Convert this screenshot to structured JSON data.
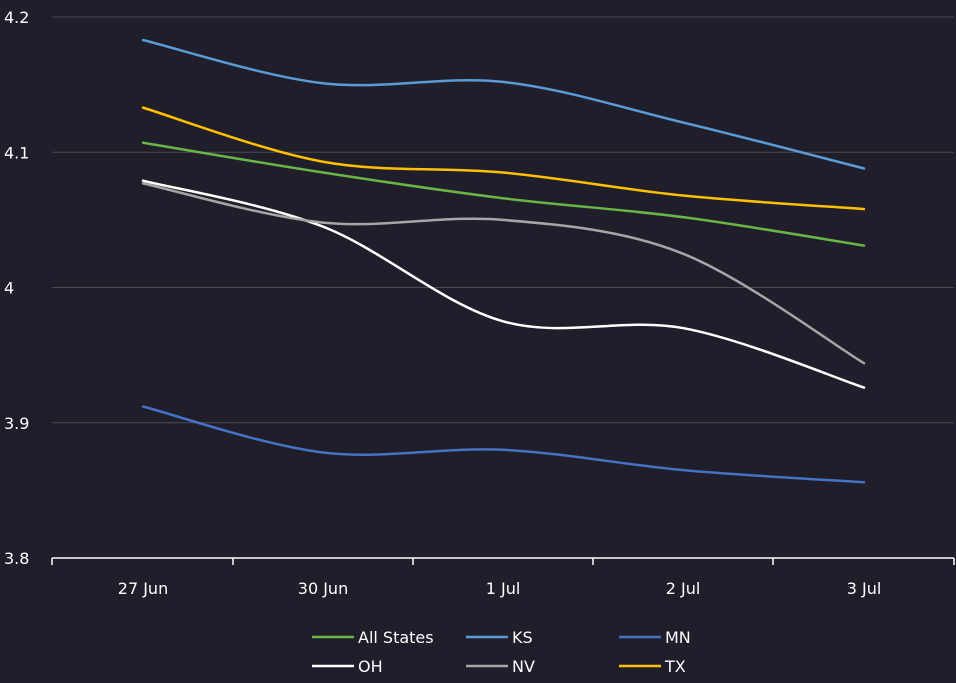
{
  "chart_data": {
    "type": "line",
    "categories": [
      "27 Jun",
      "30 Jun",
      "1 Jul",
      "2 Jul",
      "3 Jul"
    ],
    "ylim": [
      3.8,
      4.2
    ],
    "yticks": [
      "4.2",
      "4.1",
      "4",
      "3.9",
      "3.8"
    ],
    "grid": true,
    "legend_position": "bottom",
    "series": [
      {
        "name": "All States",
        "color": "#6ab547",
        "values": [
          4.107,
          4.085,
          4.066,
          4.052,
          4.031
        ]
      },
      {
        "name": "KS",
        "color": "#5b9bd5",
        "values": [
          4.183,
          4.151,
          4.152,
          4.122,
          4.088
        ]
      },
      {
        "name": "MN",
        "color": "#4472c4",
        "values": [
          3.912,
          3.878,
          3.88,
          3.865,
          3.856
        ]
      },
      {
        "name": "OH",
        "color": "#ffffff",
        "values": [
          4.079,
          4.045,
          3.975,
          3.97,
          3.926
        ]
      },
      {
        "name": "NV",
        "color": "#a6a6a6",
        "values": [
          4.077,
          4.048,
          4.05,
          4.025,
          3.944
        ]
      },
      {
        "name": "TX",
        "color": "#ffc000",
        "values": [
          4.133,
          4.093,
          4.085,
          4.068,
          4.058
        ]
      }
    ]
  }
}
